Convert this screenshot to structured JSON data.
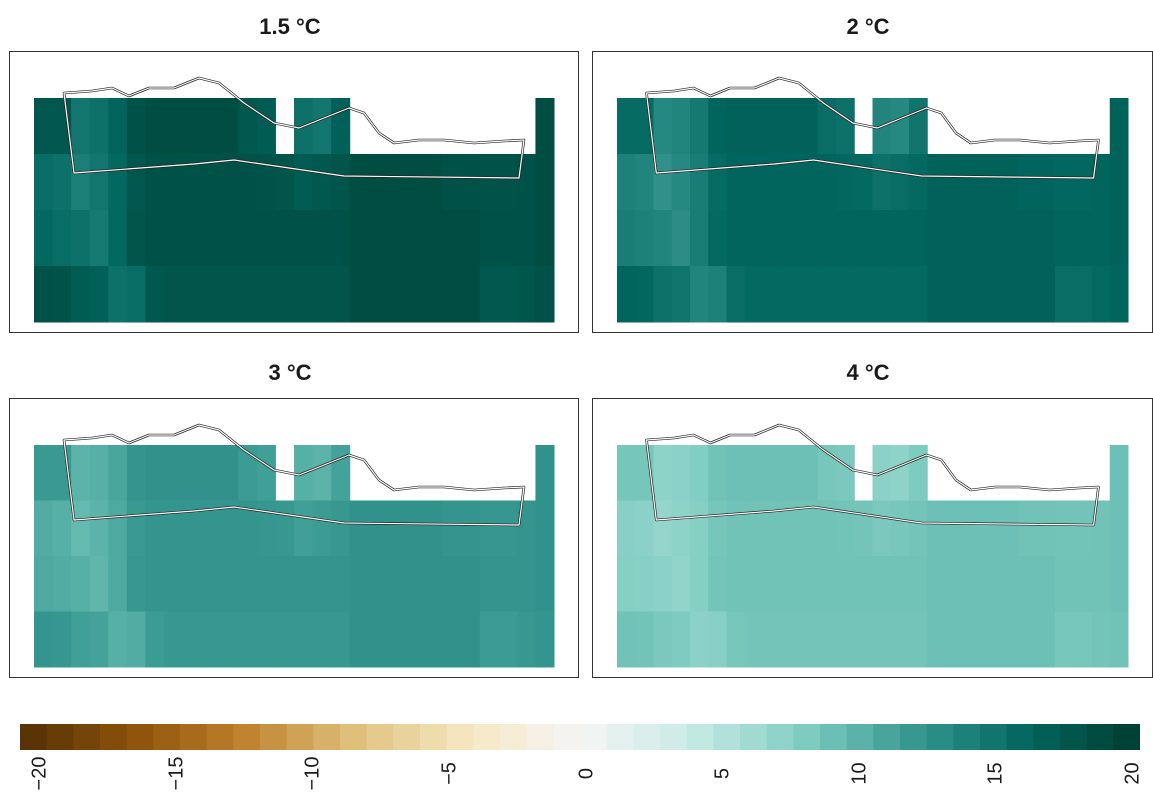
{
  "chart_data": [
    {
      "type": "heatmap",
      "title": "1.5 °C",
      "tint": 0.92
    },
    {
      "type": "heatmap",
      "title": "2 °C",
      "tint": 0.82
    },
    {
      "type": "heatmap",
      "title": "3 °C",
      "tint": 0.62
    },
    {
      "type": "heatmap",
      "title": "4 °C",
      "tint": 0.45
    }
  ],
  "colorbar": {
    "min": -20,
    "max": 20,
    "tick_labels": [
      "−20",
      "−15",
      "−10",
      "−5",
      "0",
      "5",
      "10",
      "15",
      "20"
    ],
    "colors_brown_to_teal": [
      "#543005",
      "#8c510a",
      "#bf812d",
      "#dfc27d",
      "#f6e8c3",
      "#f5f5f5",
      "#c7eae5",
      "#80cdc1",
      "#35978f",
      "#01665e",
      "#003c30"
    ]
  }
}
